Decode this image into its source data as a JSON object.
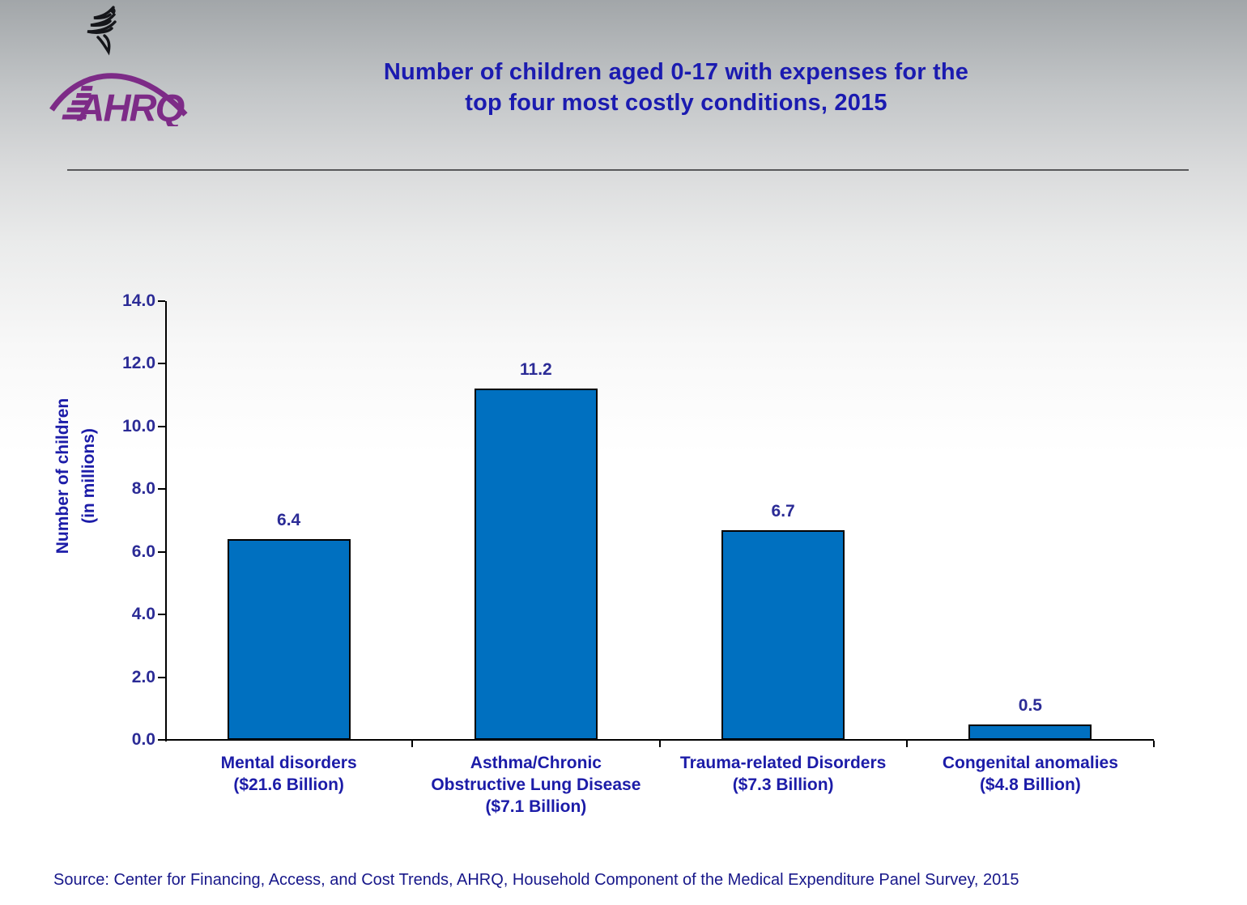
{
  "page": {
    "title_line1": "Number of children aged 0-17 with expenses for the",
    "title_line2": "top four most costly conditions, 2015",
    "logo_text": "AHRQ",
    "source": "Source: Center for Financing, Access, and Cost Trends, AHRQ, Household Component of the Medical Expenditure Panel Survey, 2015"
  },
  "colors": {
    "title_text": "#1b1bb0",
    "chart_text": "#2b2b96",
    "category_text": "#1c1ca8",
    "bar_fill": "#0070c0",
    "bar_border": "#000000",
    "logo_purple": "#7d2b87",
    "source_text": "#17178a",
    "background_top": "#a2a6a9",
    "background_bottom": "#ffffff"
  },
  "chart_data": {
    "type": "bar",
    "title": "Number of children aged 0-17 with expenses for the top four most costly conditions, 2015",
    "categories": [
      "Mental disorders\n($21.6 Billion)",
      "Asthma/Chronic\nObstructive Lung Disease\n($7.1 Billion)",
      "Trauma-related Disorders\n($7.3 Billion)",
      "Congenital anomalies\n($4.8 Billion)"
    ],
    "values": [
      6.4,
      11.2,
      6.7,
      0.5
    ],
    "bar_labels": [
      "6.4",
      "11.2",
      "6.7",
      "0.5"
    ],
    "xlabel": "",
    "ylabel": "Number of children (in millions)",
    "ylabel_lines": [
      "Number of children",
      "(in millions)"
    ],
    "ylim": [
      0,
      14
    ],
    "yticks": [
      0,
      2,
      4,
      6,
      8,
      10,
      12,
      14
    ],
    "ytick_labels": [
      "0.0",
      "2.0",
      "4.0",
      "6.0",
      "8.0",
      "10.0",
      "12.0",
      "14.0"
    ],
    "grid": false,
    "legend": null,
    "bar_color": "#0070c0",
    "bar_border_color": "#000000"
  }
}
